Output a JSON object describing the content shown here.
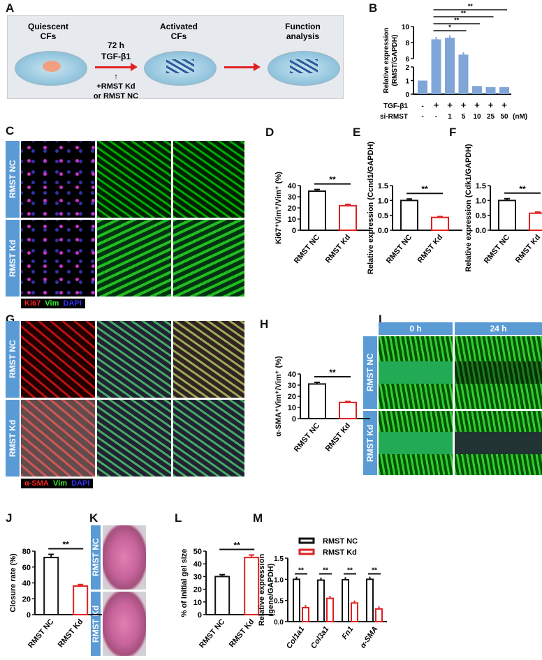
{
  "panels": {
    "A": "A",
    "B": "B",
    "C": "C",
    "D": "D",
    "E": "E",
    "F": "F",
    "G": "G",
    "H": "H",
    "I": "I",
    "J": "J",
    "K": "K",
    "L": "L",
    "M": "M"
  },
  "panel_a": {
    "step1": "Quiescent CFs",
    "treatment_time": "72 h",
    "treatment": "TGF-β1",
    "kd_label": "+RMST Kd",
    "nc_label": "or RMST NC",
    "step2": "Activated CFs",
    "step3": "Function analysis",
    "arrow_color": "#e02020"
  },
  "groups": {
    "nc": "RMST NC",
    "kd": "RMST Kd"
  },
  "stain_c": {
    "ch1": "Ki67",
    "ch2": "Vim",
    "ch3": "DAPI"
  },
  "stain_g": {
    "ch1": "α-SMA",
    "ch2": "Vim",
    "ch3": "DAPI"
  },
  "panel_i": {
    "t0": "0 h",
    "t24": "24 h"
  },
  "colors": {
    "nc": "#111111",
    "kd": "#e02020",
    "b_bar": "#7fa6d6",
    "side_label": "#5b9bd5"
  },
  "chart_data": [
    {
      "id": "B",
      "type": "bar",
      "ylabel": "Relative expression (RMST/GAPDH)",
      "yticks": [
        0,
        1,
        2,
        6,
        8,
        10
      ],
      "ybreak": [
        2,
        6
      ],
      "ylim": [
        0,
        10
      ],
      "rows": [
        {
          "label": "TGF-β1",
          "values": [
            "-",
            "+",
            "+",
            "+",
            "+",
            "+",
            "+"
          ]
        },
        {
          "label": "si-RMST",
          "values": [
            "-",
            "-",
            "1",
            "5",
            "10",
            "25",
            "50"
          ]
        }
      ],
      "unit": "(nM)",
      "values": [
        1.0,
        8.4,
        8.6,
        6.5,
        0.6,
        0.52,
        0.52
      ],
      "significance": [
        {
          "from": 1,
          "to": 3,
          "label": "*"
        },
        {
          "from": 1,
          "to": 4,
          "label": "**"
        },
        {
          "from": 1,
          "to": 5,
          "label": "**"
        },
        {
          "from": 1,
          "to": 6,
          "label": "**"
        }
      ]
    },
    {
      "id": "D",
      "type": "bar",
      "ylabel": "Ki67⁺Vim⁺/Vim⁺ (%)",
      "yticks": [
        0,
        10,
        20,
        30,
        40
      ],
      "ylim": [
        0,
        40
      ],
      "categories": [
        "RMST NC",
        "RMST Kd"
      ],
      "values": [
        35,
        22
      ],
      "errors": [
        1.5,
        1.2
      ],
      "significance": "**"
    },
    {
      "id": "E",
      "type": "bar",
      "ylabel": "Relative expression (Ccnd1/GAPDH)",
      "yticks": [
        "0.0",
        "0.5",
        "1.0",
        "1.5"
      ],
      "ylim": [
        0,
        1.5
      ],
      "categories": [
        "RMST NC",
        "RMST Kd"
      ],
      "values": [
        1.0,
        0.43
      ],
      "errors": [
        0.05,
        0.03
      ],
      "significance": "**"
    },
    {
      "id": "F",
      "type": "bar",
      "ylabel": "Relative expression (Cdk1/GAPDH)",
      "yticks": [
        "0.0",
        "0.5",
        "1.0",
        "1.5"
      ],
      "ylim": [
        0,
        1.5
      ],
      "categories": [
        "RMST NC",
        "RMST Kd"
      ],
      "values": [
        1.0,
        0.57
      ],
      "errors": [
        0.06,
        0.04
      ],
      "significance": "**"
    },
    {
      "id": "H",
      "type": "bar",
      "ylabel": "α-SMA⁺Vim⁺/Vim⁺ (%)",
      "yticks": [
        0,
        10,
        20,
        30,
        40
      ],
      "ylim": [
        0,
        40
      ],
      "categories": [
        "RMST NC",
        "RMST Kd"
      ],
      "values": [
        31,
        14.5
      ],
      "errors": [
        1.5,
        0.8
      ],
      "significance": "**"
    },
    {
      "id": "J",
      "type": "bar",
      "ylabel": "Closure rate (%)",
      "yticks": [
        0,
        20,
        40,
        60,
        80
      ],
      "ylim": [
        0,
        80
      ],
      "categories": [
        "RMST NC",
        "RMST Kd"
      ],
      "values": [
        72,
        36
      ],
      "errors": [
        4,
        2
      ],
      "significance": "**"
    },
    {
      "id": "L",
      "type": "bar",
      "ylabel": "% of initial gel size",
      "yticks": [
        0,
        10,
        20,
        30,
        40,
        50
      ],
      "ylim": [
        0,
        50
      ],
      "categories": [
        "RMST NC",
        "RMST Kd"
      ],
      "values": [
        30,
        45
      ],
      "errors": [
        1.5,
        2
      ],
      "significance": "**"
    },
    {
      "id": "M",
      "type": "bar",
      "ylabel": "Relative expression (gene/GAPDH)",
      "yticks": [
        "0.0",
        "0.5",
        "1.0",
        "1.5"
      ],
      "ylim": [
        0,
        1.5
      ],
      "categories": [
        "Col1a1",
        "Col3a1",
        "Fn1",
        "α-SMA"
      ],
      "series": [
        {
          "name": "RMST NC",
          "values": [
            1.0,
            0.98,
            0.99,
            1.0
          ]
        },
        {
          "name": "RMST Kd",
          "values": [
            0.33,
            0.55,
            0.44,
            0.3
          ]
        }
      ],
      "significance": [
        "**",
        "**",
        "**",
        "**"
      ],
      "legend": "top"
    }
  ]
}
